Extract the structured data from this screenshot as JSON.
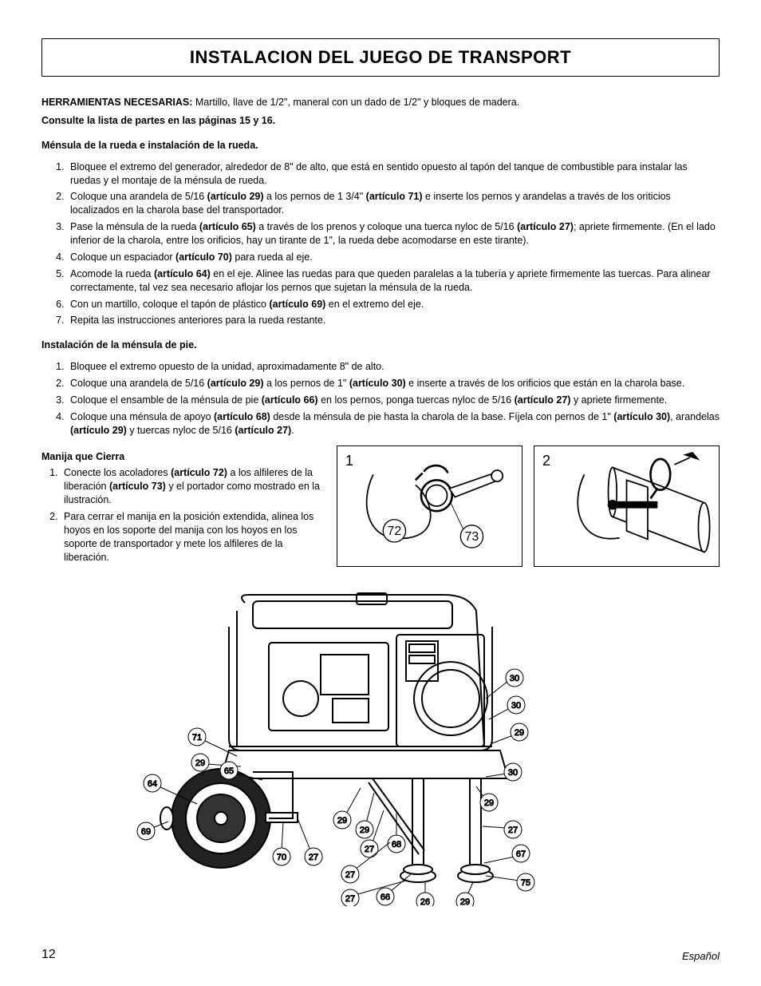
{
  "title": "INSTALACION DEL JUEGO DE TRANSPORT",
  "intro": {
    "tools_label": "HERRAMIENTAS NECESARIAS:",
    "tools_text": "  Martillo, llave de 1/2\", maneral con un dado de 1/2\" y bloques de madera.",
    "ref_text": "Consulte la lista de partes en las páginas 15 y 16."
  },
  "sectionA": {
    "heading": "Ménsula de la rueda e instalación de la rueda.",
    "steps": [
      "Bloquee el extremo del generador, alrededor de 8\" de alto, que está en sentido opuesto al tapón del tanque de combustible para instalar las ruedas y el montaje de la ménsula de rueda.",
      "Coloque una arandela de 5/16 <b>(artículo 29)</b> a los pernos de 1 3/4\" <b>(artículo 71)</b> e inserte los pernos y arandelas a través de los oriticios localizados en la charola base del transportador.",
      "Pase la ménsula de la rueda <b>(artículo 65)</b> a través de los prenos y coloque una tuerca nyloc de 5/16 <b>(artículo 27)</b>; apriete firmemente.  (En el lado inferior de la charola, entre los orificios, hay un tirante de 1\", la rueda debe acomodarse en este tirante).",
      "Coloque un espaciador <b>(artículo 70)</b> para rueda al eje.",
      "Acomode la rueda <b>(artículo 64)</b> en el eje.  Alinee las ruedas para que queden paralelas a la tubería y apriete firmemente las tuercas.  Para alinear correctamente, tal vez sea necesario aflojar los pernos que sujetan la ménsula de la rueda.",
      "Con un martillo, coloque el tapón de plástico <b>(artículo 69)</b> en el extremo del eje.",
      "Repita las instrucciones anteriores para la rueda restante."
    ]
  },
  "sectionB": {
    "heading": "Instalación de la ménsula de pie.",
    "steps": [
      "Bloquee el extremo opuesto de la unidad, aproximadamente 8\" de alto.",
      "Coloque una arandela de 5/16 <b>(artículo 29)</b>  a los pernos de 1\" <b>(artículo 30)</b> e inserte a través de los orificios que están en la charola base.",
      "Coloque el ensamble de la ménsula de pie <b>(artículo 66)</b> en los pernos, ponga tuercas nyloc de 5/16 <b>(artículo 27)</b> y apriete firmemente.",
      "Coloque una ménsula de apoyo <b>(artículo 68)</b> desde la ménsula de pie hasta la charola de la base.  Fíjela con pernos de 1\" <b>(artículo 30)</b>, arandelas <b>(artículo 29)</b> y tuercas nyloc de 5/16 <b>(artículo 27)</b>."
    ]
  },
  "sectionC": {
    "heading": "Manija que Cierra",
    "steps": [
      "Conecte los acoladores <b>(artículo 72)</b> a los alfileres de la liberación <b>(artículo 73)</b> y el portador como mostrado en la ilustración.",
      "Para cerrar el manija en la posición extendida, alinea los hoyos en los soporte del manija con los hoyos en los soporte de transportador y mete los alfileres de la liberación."
    ]
  },
  "fig_small": {
    "label1": "1",
    "label2": "2",
    "bubble72": "72",
    "bubble73": "73"
  },
  "fig_big_labels": [
    "30",
    "30",
    "29",
    "30",
    "29",
    "71",
    "29",
    "64",
    "65",
    "69",
    "70",
    "27",
    "29",
    "29",
    "27",
    "68",
    "27",
    "27",
    "66",
    "26",
    "27",
    "29",
    "67",
    "75"
  ],
  "footer": {
    "page": "12",
    "lang": "Español"
  }
}
